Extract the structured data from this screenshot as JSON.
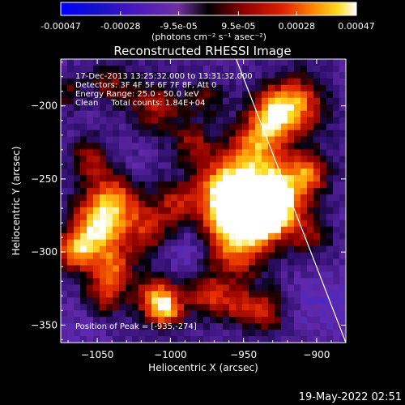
{
  "colorbar": {
    "tick_labels": [
      "-0.00047",
      "-0.00028",
      "-9.5e-05",
      "9.5e-05",
      "0.00028",
      "0.00047"
    ],
    "tick_values": [
      -0.00047,
      -0.00028,
      -9.5e-05,
      9.5e-05,
      0.00028,
      0.00047
    ],
    "range": [
      -0.00047,
      0.00047
    ],
    "unit_label": "(photons cm⁻² s⁻¹ asec⁻²)"
  },
  "chart_data": {
    "type": "heatmap",
    "title": "Reconstructed RHESSI Image",
    "xlabel": "Heliocentric X (arcsec)",
    "ylabel": "Heliocentric Y (arcsec)",
    "xlim": [
      -1075,
      -880
    ],
    "ylim": [
      -362,
      -168
    ],
    "x_ticks": [
      -1050,
      -1000,
      -950,
      -900
    ],
    "x_tick_labels": [
      "−1050",
      "−1000",
      "−950",
      "−900"
    ],
    "y_ticks": [
      -200,
      -250,
      -300,
      -350
    ],
    "y_tick_labels": [
      "−200",
      "−250",
      "−300",
      "−350"
    ],
    "limb_line": [
      [
        -955,
        -168
      ],
      [
        -880,
        -362
      ]
    ],
    "sources": [
      {
        "x": -935,
        "y": -274,
        "sigma": 11,
        "amp": 1.0
      },
      {
        "x": -945,
        "y": -268,
        "sigma": 18,
        "amp": 0.75
      },
      {
        "x": -925,
        "y": -258,
        "sigma": 14,
        "amp": 0.7
      },
      {
        "x": -960,
        "y": -270,
        "sigma": 13,
        "amp": 0.7
      },
      {
        "x": -960,
        "y": -250,
        "sigma": 14,
        "amp": 0.6
      },
      {
        "x": -940,
        "y": -225,
        "sigma": 12,
        "amp": 0.7
      },
      {
        "x": -915,
        "y": -200,
        "sigma": 14,
        "amp": 0.75
      },
      {
        "x": -930,
        "y": -205,
        "sigma": 10,
        "amp": 0.6
      },
      {
        "x": -905,
        "y": -245,
        "sigma": 10,
        "amp": 0.55
      },
      {
        "x": -955,
        "y": -298,
        "sigma": 14,
        "amp": 0.6
      },
      {
        "x": -935,
        "y": -340,
        "sigma": 10,
        "amp": 0.5
      },
      {
        "x": -975,
        "y": -330,
        "sigma": 10,
        "amp": 0.5
      },
      {
        "x": -955,
        "y": -335,
        "sigma": 9,
        "amp": 0.4
      },
      {
        "x": -1015,
        "y": -285,
        "sigma": 12,
        "amp": 0.45
      },
      {
        "x": -995,
        "y": -265,
        "sigma": 10,
        "amp": 0.45
      },
      {
        "x": -1040,
        "y": -265,
        "sigma": 14,
        "amp": 0.75
      },
      {
        "x": -1050,
        "y": -285,
        "sigma": 12,
        "amp": 0.8
      },
      {
        "x": -1065,
        "y": -300,
        "sigma": 9,
        "amp": 0.7
      },
      {
        "x": -1040,
        "y": -310,
        "sigma": 10,
        "amp": 0.6
      },
      {
        "x": -1055,
        "y": -235,
        "sigma": 9,
        "amp": 0.4
      },
      {
        "x": -1045,
        "y": -330,
        "sigma": 10,
        "amp": 0.45
      },
      {
        "x": -1010,
        "y": -330,
        "sigma": 10,
        "amp": 0.65
      },
      {
        "x": -1003,
        "y": -340,
        "sigma": 8,
        "amp": 0.7
      },
      {
        "x": -1010,
        "y": -200,
        "sigma": 12,
        "amp": 0.45
      },
      {
        "x": -985,
        "y": -225,
        "sigma": 10,
        "amp": 0.4
      },
      {
        "x": -1040,
        "y": -185,
        "sigma": 10,
        "amp": 0.35
      },
      {
        "x": -1070,
        "y": -190,
        "sigma": 8,
        "amp": 0.3
      },
      {
        "x": -975,
        "y": -195,
        "sigma": 9,
        "amp": 0.3
      },
      {
        "x": -905,
        "y": -290,
        "sigma": 10,
        "amp": 0.35
      },
      {
        "x": -1025,
        "y": -245,
        "sigma": 8,
        "amp": -0.2
      },
      {
        "x": -1060,
        "y": -350,
        "sigma": 12,
        "amp": -0.15
      },
      {
        "x": -990,
        "y": -300,
        "sigma": 10,
        "amp": -0.25
      },
      {
        "x": -895,
        "y": -335,
        "sigma": 14,
        "amp": -0.25
      }
    ]
  },
  "info": {
    "line1": "17-Dec-2013 13:25:32.000 to 13:31:32.000",
    "line2": "Detectors: 3F 4F 5F 6F 7F 8F, Att 0",
    "line3": "Energy Range: 25.0 - 50.0 keV",
    "line4": "Clean     Total counts: 1.84E+04",
    "peak": "Position of Peak = [-935,-274]"
  },
  "footer": {
    "timestamp": "19-May-2022 02:51"
  }
}
